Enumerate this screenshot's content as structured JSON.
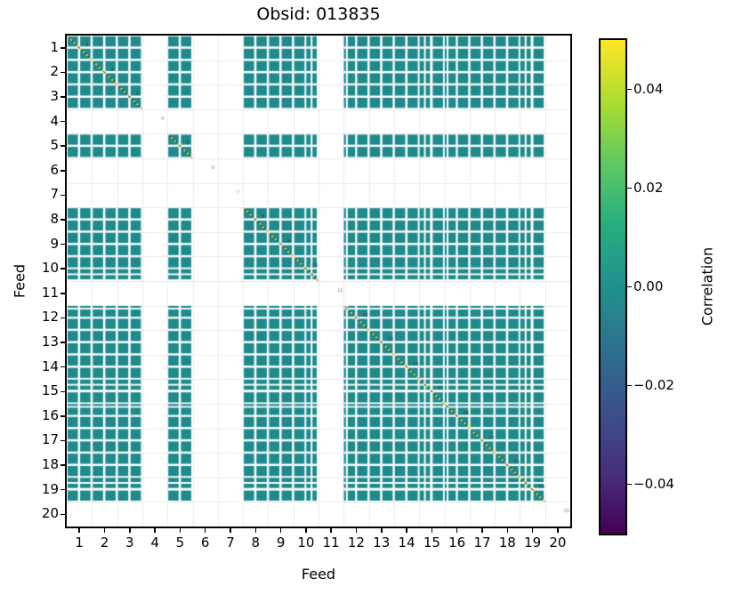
{
  "chart_data": {
    "type": "heatmap",
    "title": "Obsid: 013835",
    "xlabel": "Feed",
    "ylabel": "Feed",
    "n_feeds": 20,
    "bands_per_feed": 2,
    "axis_tick_labels": [
      "1",
      "2",
      "3",
      "4",
      "5",
      "6",
      "7",
      "8",
      "9",
      "10",
      "11",
      "12",
      "13",
      "14",
      "15",
      "16",
      "17",
      "18",
      "19",
      "20"
    ],
    "value_range": [
      -0.05,
      0.05
    ],
    "off_diagonal_value": 0.0,
    "diagonal_value": 0.05,
    "missing_feeds": [
      4,
      6,
      7,
      11,
      20
    ],
    "feeds": [
      {
        "feed": 1,
        "bands": [
          "full",
          "full"
        ],
        "present": true
      },
      {
        "feed": 2,
        "bands": [
          "full",
          "full"
        ],
        "present": true
      },
      {
        "feed": 3,
        "bands": [
          "full",
          "full"
        ],
        "present": true
      },
      {
        "feed": 4,
        "bands": [
          "none",
          "none"
        ],
        "present": false
      },
      {
        "feed": 5,
        "bands": [
          "full",
          "full"
        ],
        "present": true
      },
      {
        "feed": 6,
        "bands": [
          "none",
          "none"
        ],
        "present": false
      },
      {
        "feed": 7,
        "bands": [
          "none",
          "none"
        ],
        "present": false
      },
      {
        "feed": 8,
        "bands": [
          "full",
          "full"
        ],
        "present": true
      },
      {
        "feed": 9,
        "bands": [
          "full",
          "full"
        ],
        "present": true
      },
      {
        "feed": 10,
        "bands": [
          "full",
          "split"
        ],
        "present": true
      },
      {
        "feed": 11,
        "bands": [
          "none",
          "none"
        ],
        "present": false
      },
      {
        "feed": 12,
        "bands": [
          "sliver",
          "full"
        ],
        "present": true
      },
      {
        "feed": 13,
        "bands": [
          "full",
          "full"
        ],
        "present": true
      },
      {
        "feed": 14,
        "bands": [
          "full",
          "full"
        ],
        "present": true
      },
      {
        "feed": 15,
        "bands": [
          "split",
          "full"
        ],
        "present": true
      },
      {
        "feed": 16,
        "bands": [
          "sliver",
          "full"
        ],
        "present": true
      },
      {
        "feed": 17,
        "bands": [
          "full",
          "full"
        ],
        "present": true
      },
      {
        "feed": 18,
        "bands": [
          "full",
          "full"
        ],
        "present": true
      },
      {
        "feed": 19,
        "bands": [
          "split",
          "full"
        ],
        "present": true
      },
      {
        "feed": 20,
        "bands": [
          "none",
          "none"
        ],
        "present": false
      }
    ],
    "band_layouts": {
      "full": [
        [
          0.07,
          0.89
        ]
      ],
      "split": [
        [
          0.03,
          0.38
        ],
        [
          0.52,
          0.86
        ]
      ],
      "sliver": [
        [
          0.02,
          0.18
        ],
        [
          0.32,
          0.91
        ]
      ],
      "none": []
    },
    "colors": {
      "cell": "#1e8a8c",
      "diagonal_dash": "#f2e43b",
      "diagonal_gap": "#2e4a66",
      "grid": "#ebebeb",
      "spine": "#000000",
      "annotation_present": "#263a42",
      "annotation_absent": "#8a8a8a",
      "background": "#ffffff"
    },
    "colorbar": {
      "label": "Correlation",
      "tick_labels": [
        "0.04",
        "0.02",
        "0.00",
        "−0.02",
        "−0.04"
      ],
      "tick_values": [
        0.04,
        0.02,
        0.0,
        -0.02,
        -0.04
      ],
      "vmin": -0.05,
      "vmax": 0.05,
      "gradient_stops": [
        "#440154",
        "#46317e",
        "#3b518b",
        "#2c718e",
        "#21918c",
        "#27ad81",
        "#5ec962",
        "#addc30",
        "#fde725"
      ]
    }
  }
}
